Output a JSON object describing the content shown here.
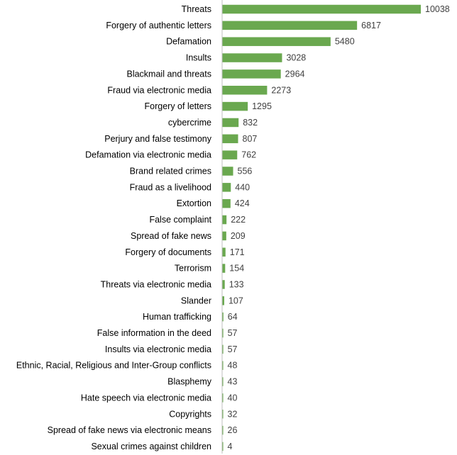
{
  "chart_data": {
    "type": "bar",
    "orientation": "horizontal",
    "title": "",
    "xlabel": "",
    "ylabel": "",
    "xlim": [
      0,
      10038
    ],
    "grid": false,
    "legend": "none",
    "bar_color": "#6aa84f",
    "axis_color": "#bfbfbf",
    "categories": [
      "Threats",
      "Forgery of authentic letters",
      "Defamation",
      "Insults",
      "Blackmail and threats",
      "Fraud via electronic media",
      "Forgery of letters",
      "cybercrime",
      "Perjury and false testimony",
      "Defamation via electronic media",
      "Brand related crimes",
      "Fraud as a livelihood",
      "Extortion",
      "False complaint",
      "Spread of fake news",
      "Forgery of documents",
      "Terrorism",
      "Threats via electronic media",
      "Slander",
      "Human trafficking",
      "False information in the deed",
      "Insults via electronic media",
      "Ethnic, Racial, Religious and Inter-Group conflicts",
      "Blasphemy",
      "Hate speech via electronic media",
      "Copyrights",
      "Spread of fake news via electronic means",
      "Sexual crimes against children"
    ],
    "values": [
      10038,
      6817,
      5480,
      3028,
      2964,
      2273,
      1295,
      832,
      807,
      762,
      556,
      440,
      424,
      222,
      209,
      171,
      154,
      133,
      107,
      64,
      57,
      57,
      48,
      43,
      40,
      32,
      26,
      4
    ]
  }
}
